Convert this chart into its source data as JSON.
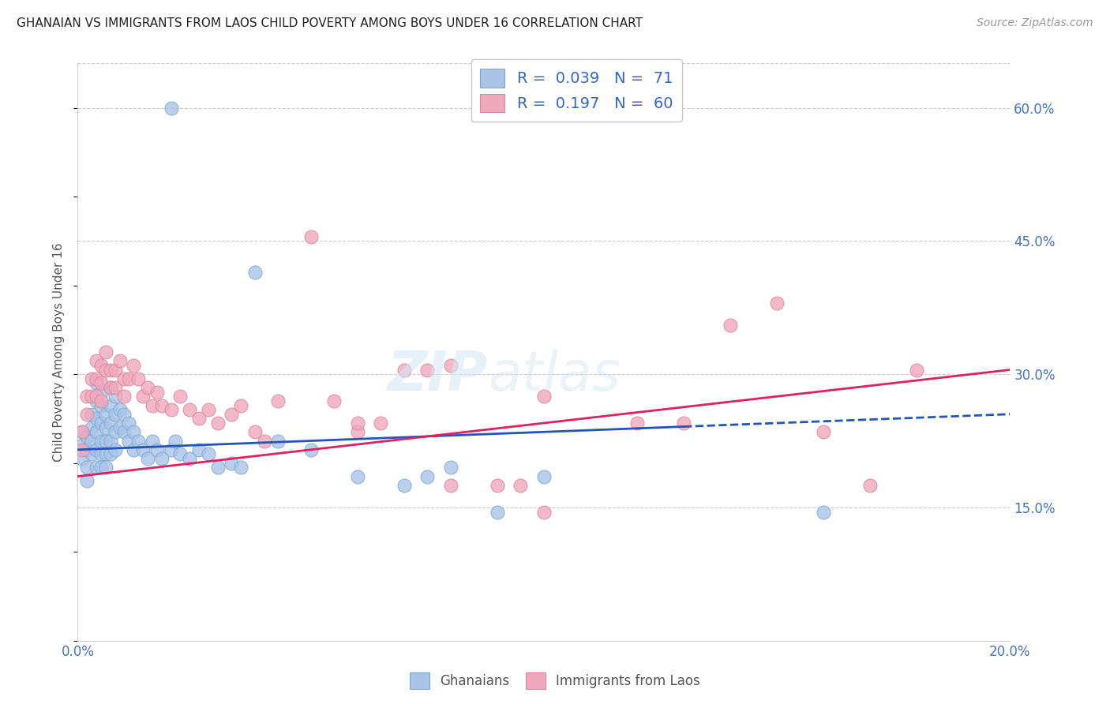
{
  "title": "GHANAIAN VS IMMIGRANTS FROM LAOS CHILD POVERTY AMONG BOYS UNDER 16 CORRELATION CHART",
  "source": "Source: ZipAtlas.com",
  "ylabel": "Child Poverty Among Boys Under 16",
  "y_ticks_right": [
    0.15,
    0.3,
    0.45,
    0.6
  ],
  "y_tick_labels_right": [
    "15.0%",
    "30.0%",
    "45.0%",
    "60.0%"
  ],
  "legend_R1": "0.039",
  "legend_N1": "71",
  "legend_R2": "0.197",
  "legend_N2": "60",
  "blue_scatter_color": "#aac4e8",
  "blue_scatter_edge": "#7aaad0",
  "pink_scatter_color": "#f0a8bc",
  "pink_scatter_edge": "#d888a0",
  "blue_trend_color": "#2255bb",
  "pink_trend_color": "#e02060",
  "grid_color": "#cccccc",
  "title_color": "#222222",
  "source_color": "#999999",
  "ylabel_color": "#555555",
  "tick_color": "#4472c4",
  "xlim": [
    0.0,
    0.2
  ],
  "ylim": [
    0.0,
    0.65
  ],
  "blue_trend_solid_end": 0.13,
  "blue_trend_y0": 0.215,
  "blue_trend_y1": 0.255,
  "pink_trend_y0": 0.185,
  "pink_trend_y1": 0.305,
  "ghanaians_x": [
    0.001,
    0.001,
    0.001,
    0.002,
    0.002,
    0.002,
    0.002,
    0.003,
    0.003,
    0.003,
    0.003,
    0.004,
    0.004,
    0.004,
    0.004,
    0.004,
    0.004,
    0.005,
    0.005,
    0.005,
    0.005,
    0.005,
    0.005,
    0.006,
    0.006,
    0.006,
    0.006,
    0.006,
    0.007,
    0.007,
    0.007,
    0.007,
    0.007,
    0.008,
    0.008,
    0.008,
    0.008,
    0.009,
    0.009,
    0.01,
    0.01,
    0.011,
    0.011,
    0.012,
    0.012,
    0.013,
    0.014,
    0.015,
    0.016,
    0.017,
    0.018,
    0.02,
    0.021,
    0.022,
    0.024,
    0.026,
    0.028,
    0.03,
    0.033,
    0.035,
    0.038,
    0.043,
    0.05,
    0.06,
    0.07,
    0.075,
    0.08,
    0.09,
    0.1,
    0.16,
    0.02
  ],
  "ghanaians_y": [
    0.235,
    0.22,
    0.205,
    0.23,
    0.215,
    0.195,
    0.18,
    0.225,
    0.255,
    0.24,
    0.21,
    0.29,
    0.27,
    0.25,
    0.235,
    0.215,
    0.195,
    0.28,
    0.265,
    0.245,
    0.225,
    0.21,
    0.195,
    0.255,
    0.24,
    0.225,
    0.21,
    0.195,
    0.285,
    0.265,
    0.245,
    0.225,
    0.21,
    0.275,
    0.255,
    0.235,
    0.215,
    0.26,
    0.24,
    0.255,
    0.235,
    0.245,
    0.225,
    0.235,
    0.215,
    0.225,
    0.215,
    0.205,
    0.225,
    0.215,
    0.205,
    0.215,
    0.225,
    0.21,
    0.205,
    0.215,
    0.21,
    0.195,
    0.2,
    0.195,
    0.415,
    0.225,
    0.215,
    0.185,
    0.175,
    0.185,
    0.195,
    0.145,
    0.185,
    0.145,
    0.6
  ],
  "laos_x": [
    0.001,
    0.001,
    0.002,
    0.002,
    0.003,
    0.003,
    0.004,
    0.004,
    0.004,
    0.005,
    0.005,
    0.005,
    0.006,
    0.006,
    0.007,
    0.007,
    0.008,
    0.008,
    0.009,
    0.01,
    0.01,
    0.011,
    0.012,
    0.013,
    0.014,
    0.015,
    0.016,
    0.017,
    0.018,
    0.02,
    0.022,
    0.024,
    0.026,
    0.028,
    0.03,
    0.033,
    0.035,
    0.038,
    0.04,
    0.043,
    0.05,
    0.055,
    0.06,
    0.065,
    0.075,
    0.08,
    0.09,
    0.095,
    0.1,
    0.12,
    0.13,
    0.14,
    0.15,
    0.16,
    0.17,
    0.18,
    0.06,
    0.07,
    0.08,
    0.1
  ],
  "laos_y": [
    0.235,
    0.215,
    0.275,
    0.255,
    0.295,
    0.275,
    0.315,
    0.295,
    0.275,
    0.31,
    0.29,
    0.27,
    0.325,
    0.305,
    0.305,
    0.285,
    0.305,
    0.285,
    0.315,
    0.295,
    0.275,
    0.295,
    0.31,
    0.295,
    0.275,
    0.285,
    0.265,
    0.28,
    0.265,
    0.26,
    0.275,
    0.26,
    0.25,
    0.26,
    0.245,
    0.255,
    0.265,
    0.235,
    0.225,
    0.27,
    0.455,
    0.27,
    0.235,
    0.245,
    0.305,
    0.31,
    0.175,
    0.175,
    0.275,
    0.245,
    0.245,
    0.355,
    0.38,
    0.235,
    0.175,
    0.305,
    0.245,
    0.305,
    0.175,
    0.145
  ]
}
